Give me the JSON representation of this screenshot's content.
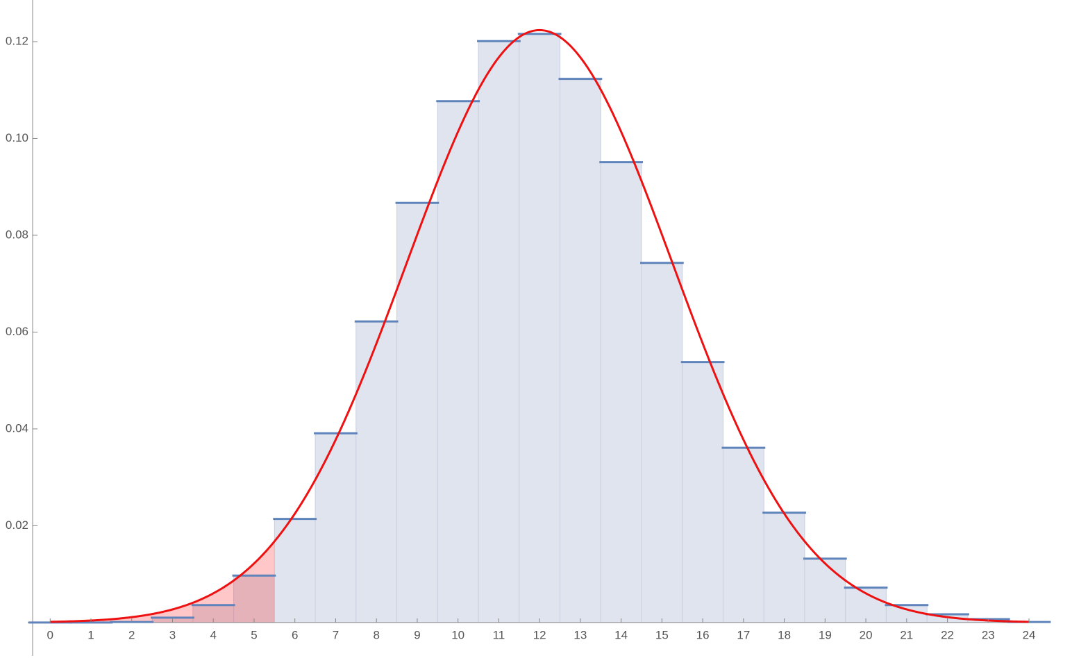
{
  "chart_data": {
    "type": "histogram-curve",
    "categories": [
      0,
      1,
      2,
      3,
      4,
      5,
      6,
      7,
      8,
      9,
      10,
      11,
      12,
      13,
      14,
      15,
      16,
      17,
      18,
      19,
      20,
      21,
      22,
      23,
      24
    ],
    "values": [
      0,
      0,
      0.0001,
      0.001,
      0.0036,
      0.0097,
      0.0214,
      0.0391,
      0.0622,
      0.0867,
      0.1077,
      0.1201,
      0.1216,
      0.1123,
      0.0951,
      0.0743,
      0.0538,
      0.0361,
      0.0227,
      0.0132,
      0.0072,
      0.0036,
      0.0017,
      0.0007,
      0.0001
    ],
    "color": "#5f83bb",
    "bar_fill": "#dfe4ee",
    "curve": {
      "mean": 12,
      "sd": 3.26,
      "range": [
        0,
        24
      ],
      "shade_to": 5.5,
      "color": "#ee1111",
      "shade_color": "rgba(255,0,0,0.22)"
    },
    "xlim": [
      -0.43,
      24.51
    ],
    "ylim": [
      -0.0069,
      0.1286
    ],
    "xticks": [
      0,
      1,
      2,
      3,
      4,
      5,
      6,
      7,
      8,
      9,
      10,
      11,
      12,
      13,
      14,
      15,
      16,
      17,
      18,
      19,
      20,
      21,
      22,
      23,
      24
    ],
    "yticks": [
      0.02,
      0.04,
      0.06,
      0.08,
      {
        "value": 0.1,
        "label": "0.10"
      },
      0.12
    ]
  }
}
